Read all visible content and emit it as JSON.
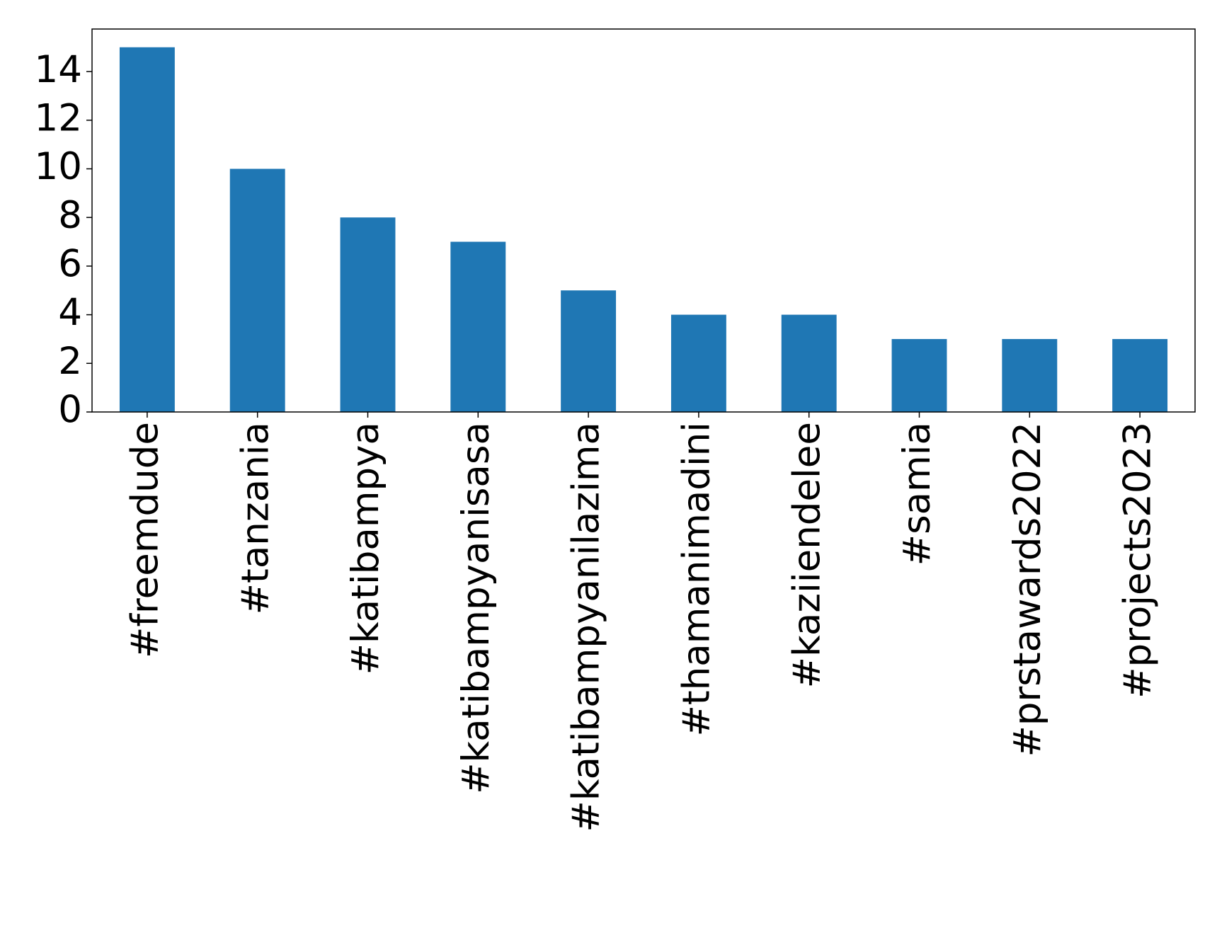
{
  "chart_data": {
    "type": "bar",
    "categories": [
      "#freemdude",
      "#tanzania",
      "#katibampya",
      "#katibampyanisasa",
      "#katibampyanilazima",
      "#thamanimadini",
      "#kaziiendelee",
      "#samia",
      "#prstawards2022",
      "#projects2023"
    ],
    "values": [
      15,
      10,
      8,
      7,
      5,
      4,
      4,
      3,
      3,
      3
    ],
    "color": "#1f77b4",
    "ylim": [
      0,
      15.75
    ],
    "yticks": [
      0,
      2,
      4,
      6,
      8,
      10,
      12,
      14
    ],
    "grid": false
  }
}
